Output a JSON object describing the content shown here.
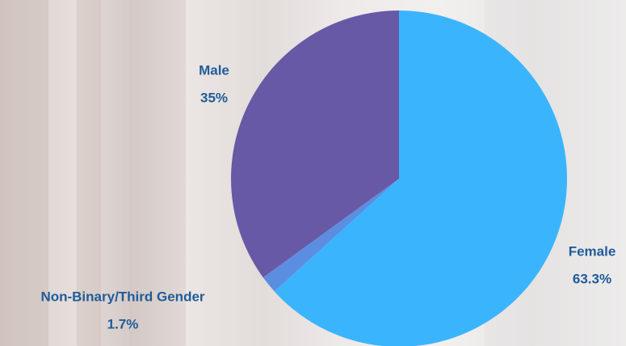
{
  "chart_data": {
    "type": "pie",
    "categories": [
      "Female",
      "Non-Binary/Third Gender",
      "Male"
    ],
    "values": [
      63.3,
      1.7,
      35
    ],
    "value_labels": [
      "63.3%",
      "1.7%",
      "35%"
    ],
    "colors": [
      "#3bb4fe",
      "#5b8ee0",
      "#6759a6"
    ]
  }
}
